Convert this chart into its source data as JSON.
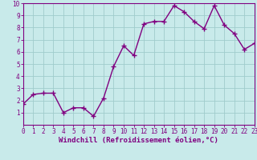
{
  "x": [
    0,
    1,
    2,
    3,
    4,
    5,
    6,
    7,
    8,
    9,
    10,
    11,
    12,
    13,
    14,
    15,
    16,
    17,
    18,
    19,
    20,
    21,
    22,
    23
  ],
  "y": [
    1.7,
    2.5,
    2.6,
    2.6,
    1.0,
    1.4,
    1.4,
    0.7,
    2.2,
    4.8,
    6.5,
    5.7,
    8.3,
    8.5,
    8.5,
    9.8,
    9.3,
    8.5,
    7.9,
    9.8,
    8.2,
    7.5,
    6.2,
    6.7
  ],
  "line_color": "#800080",
  "marker": "+",
  "marker_size": 4,
  "linewidth": 1.0,
  "background_color": "#c8eaea",
  "grid_color": "#a0cccc",
  "xlabel": "Windchill (Refroidissement éolien,°C)",
  "xlim": [
    0,
    23
  ],
  "ylim": [
    0,
    10
  ],
  "yticks": [
    1,
    2,
    3,
    4,
    5,
    6,
    7,
    8,
    9,
    10
  ],
  "xticks": [
    0,
    1,
    2,
    3,
    4,
    5,
    6,
    7,
    8,
    9,
    10,
    11,
    12,
    13,
    14,
    15,
    16,
    17,
    18,
    19,
    20,
    21,
    22,
    23
  ],
  "line_purple": "#800080",
  "tick_fontsize": 5.5,
  "xlabel_fontsize": 6.5
}
